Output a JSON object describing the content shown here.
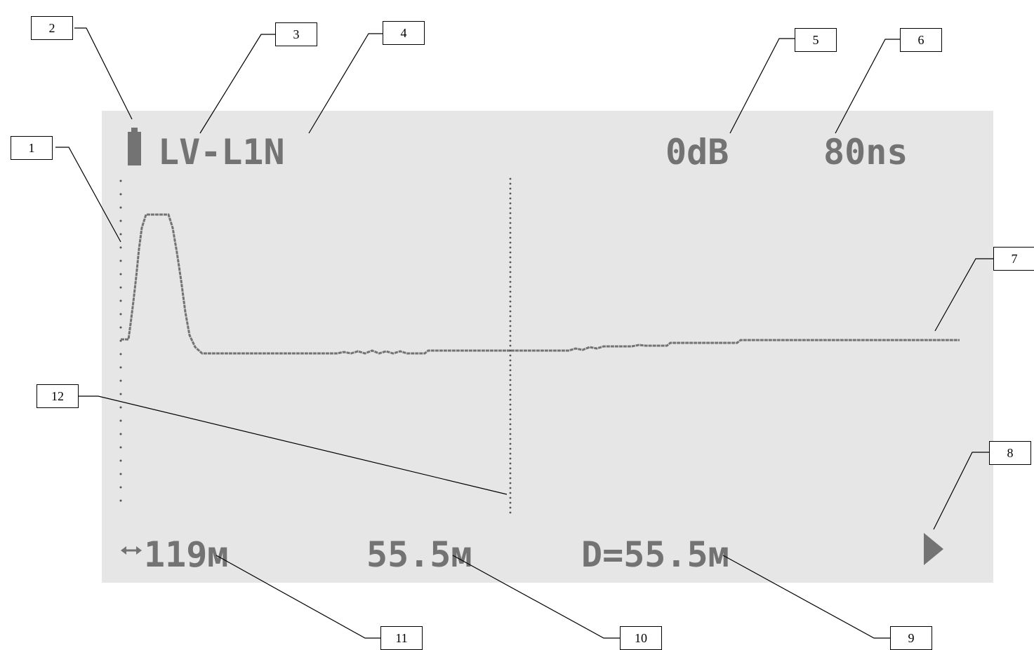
{
  "lcd": {
    "mode": "LV-L1N",
    "gain": "0dB",
    "pulse_width": "80ns",
    "range": "119м",
    "cursor_distance": "55.5м",
    "delta_distance": "D=55.5м",
    "battery_icon": "battery-icon",
    "range_icon": "double-arrow-icon",
    "next_icon": "play-triangle-icon"
  },
  "callouts": [
    "1",
    "2",
    "3",
    "4",
    "5",
    "6",
    "7",
    "8",
    "9",
    "10",
    "11",
    "12"
  ],
  "colors": {
    "lcd_background": "#e6e6e6",
    "lcd_ink": "#737373",
    "callout_line": "#000000"
  }
}
